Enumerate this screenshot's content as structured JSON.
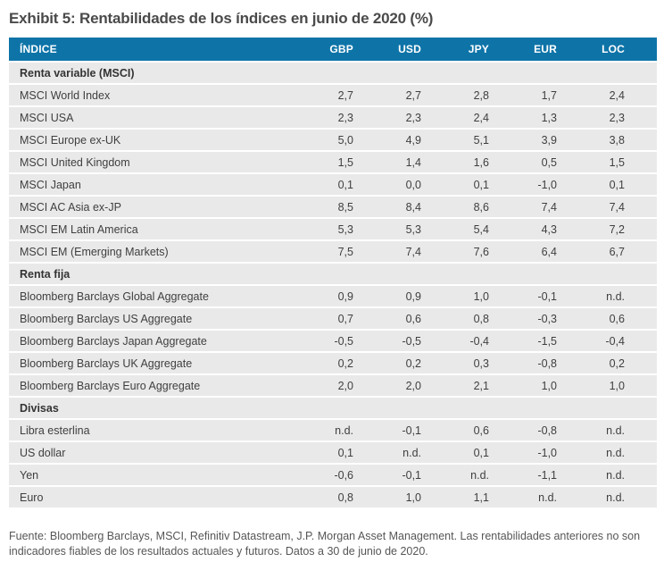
{
  "title": "Exhibit 5: Rentabilidades de los índices en junio de 2020 (%)",
  "table": {
    "columns": [
      "ÍNDICE",
      "GBP",
      "USD",
      "JPY",
      "EUR",
      "LOC"
    ],
    "sections": [
      {
        "label": "Renta variable (MSCI)",
        "rows": [
          {
            "label": "MSCI World Index",
            "values": [
              "2,7",
              "2,7",
              "2,8",
              "1,7",
              "2,4"
            ]
          },
          {
            "label": "MSCI USA",
            "values": [
              "2,3",
              "2,3",
              "2,4",
              "1,3",
              "2,3"
            ]
          },
          {
            "label": "MSCI Europe ex-UK",
            "values": [
              "5,0",
              "4,9",
              "5,1",
              "3,9",
              "3,8"
            ]
          },
          {
            "label": "MSCI United Kingdom",
            "values": [
              "1,5",
              "1,4",
              "1,6",
              "0,5",
              "1,5"
            ]
          },
          {
            "label": "MSCI Japan",
            "values": [
              "0,1",
              "0,0",
              "0,1",
              "-1,0",
              "0,1"
            ]
          },
          {
            "label": "MSCI AC Asia ex-JP",
            "values": [
              "8,5",
              "8,4",
              "8,6",
              "7,4",
              "7,4"
            ]
          },
          {
            "label": "MSCI EM Latin America",
            "values": [
              "5,3",
              "5,3",
              "5,4",
              "4,3",
              "7,2"
            ]
          },
          {
            "label": "MSCI EM (Emerging Markets)",
            "values": [
              "7,5",
              "7,4",
              "7,6",
              "6,4",
              "6,7"
            ]
          }
        ]
      },
      {
        "label": "Renta fija",
        "rows": [
          {
            "label": "Bloomberg Barclays Global Aggregate",
            "values": [
              "0,9",
              "0,9",
              "1,0",
              "-0,1",
              "n.d."
            ]
          },
          {
            "label": "Bloomberg Barclays US Aggregate",
            "values": [
              "0,7",
              "0,6",
              "0,8",
              "-0,3",
              "0,6"
            ]
          },
          {
            "label": "Bloomberg Barclays Japan Aggregate",
            "values": [
              "-0,5",
              "-0,5",
              "-0,4",
              "-1,5",
              "-0,4"
            ]
          },
          {
            "label": "Bloomberg Barclays UK Aggregate",
            "values": [
              "0,2",
              "0,2",
              "0,3",
              "-0,8",
              "0,2"
            ]
          },
          {
            "label": "Bloomberg Barclays Euro Aggregate",
            "values": [
              "2,0",
              "2,0",
              "2,1",
              "1,0",
              "1,0"
            ]
          }
        ]
      },
      {
        "label": "Divisas",
        "rows": [
          {
            "label": "Libra esterlina",
            "values": [
              "n.d.",
              "-0,1",
              "0,6",
              "-0,8",
              "n.d."
            ]
          },
          {
            "label": "US dollar",
            "values": [
              "0,1",
              "n.d.",
              "0,1",
              "-1,0",
              "n.d."
            ]
          },
          {
            "label": "Yen",
            "values": [
              "-0,6",
              "-0,1",
              "n.d.",
              "-1,1",
              "n.d."
            ]
          },
          {
            "label": "Euro",
            "values": [
              "0,8",
              "1,0",
              "1,1",
              "n.d.",
              "n.d."
            ]
          }
        ]
      }
    ]
  },
  "footer": "Fuente: Bloomberg Barclays, MSCI, Refinitiv Datastream, J.P. Morgan Asset Management. Las rentabilidades anteriores no son indicadores fiables de los resultados actuales y futuros. Datos a 30 de junio de 2020.",
  "colors": {
    "header_bg": "#0e74a8",
    "header_text": "#ffffff",
    "row_bg": "#e9e9e9",
    "body_text": "#3f3f3f",
    "title_text": "#4a4a4a",
    "footer_text": "#565656"
  }
}
